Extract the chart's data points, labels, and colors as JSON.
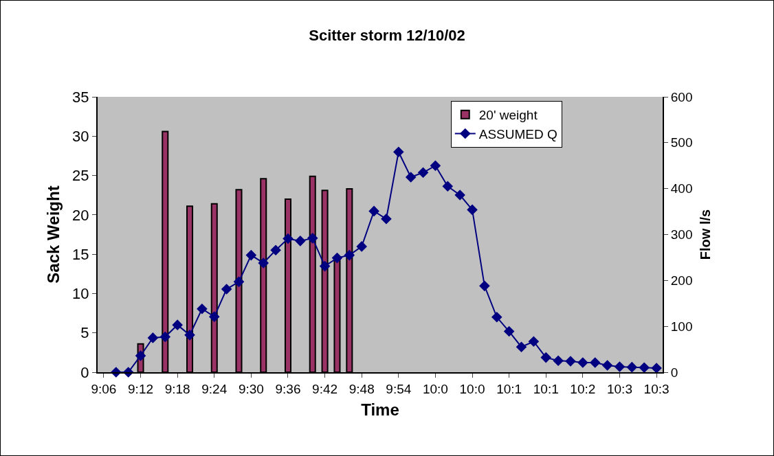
{
  "chart_data": {
    "type": "bar",
    "title": "Scitter storm 12/10/02",
    "xlabel": "Time",
    "ylabel": "Sack Weight",
    "y2label": "Flow l/s",
    "categories": [
      "9:06",
      null,
      null,
      "9:12",
      null,
      null,
      "9:18",
      null,
      null,
      "9:24",
      null,
      null,
      "9:30",
      null,
      null,
      "9:36",
      null,
      null,
      "9:42",
      null,
      null,
      "9:48",
      null,
      null,
      "9:54",
      null,
      null,
      "10:0",
      null,
      null,
      "10:0",
      null,
      null,
      "10:1",
      null,
      null,
      "10:1",
      null,
      null,
      "10:2",
      null,
      null,
      "10:3",
      null,
      null,
      "10:3"
    ],
    "series": [
      {
        "name": "20' weight",
        "color": "#993366",
        "values": [
          null,
          null,
          null,
          3.6,
          null,
          30.6,
          null,
          21.1,
          null,
          21.4,
          null,
          23.2,
          null,
          24.6,
          null,
          22.0,
          null,
          24.9,
          23.1,
          14.5,
          23.3,
          null,
          null,
          null,
          null,
          null,
          null,
          null,
          null,
          null,
          null,
          null,
          null,
          null,
          null,
          null,
          null,
          null,
          null,
          null,
          null,
          null,
          null,
          null,
          null,
          null
        ]
      },
      {
        "name": "ASSUMED Q",
        "type": "line",
        "axis": "y2",
        "color": "#000080",
        "values": [
          null,
          0,
          0,
          36,
          75,
          77,
          103,
          81,
          138,
          121,
          181,
          197,
          255,
          238,
          266,
          291,
          286,
          292,
          231,
          249,
          255,
          274,
          351,
          334,
          480,
          425,
          435,
          450,
          405,
          386,
          354,
          188,
          120,
          89,
          55,
          67,
          32,
          25,
          24,
          21,
          21,
          15,
          12,
          11,
          10,
          9
        ]
      }
    ],
    "ylim": [
      0,
      35
    ],
    "yticks": [
      0,
      5,
      10,
      15,
      20,
      25,
      30,
      35
    ],
    "y2lim": [
      0,
      600
    ],
    "y2ticks": [
      0,
      100,
      200,
      300,
      400,
      500,
      600
    ],
    "grid": false,
    "legend": "top right",
    "marker": "diamond",
    "line_style": "solid"
  }
}
